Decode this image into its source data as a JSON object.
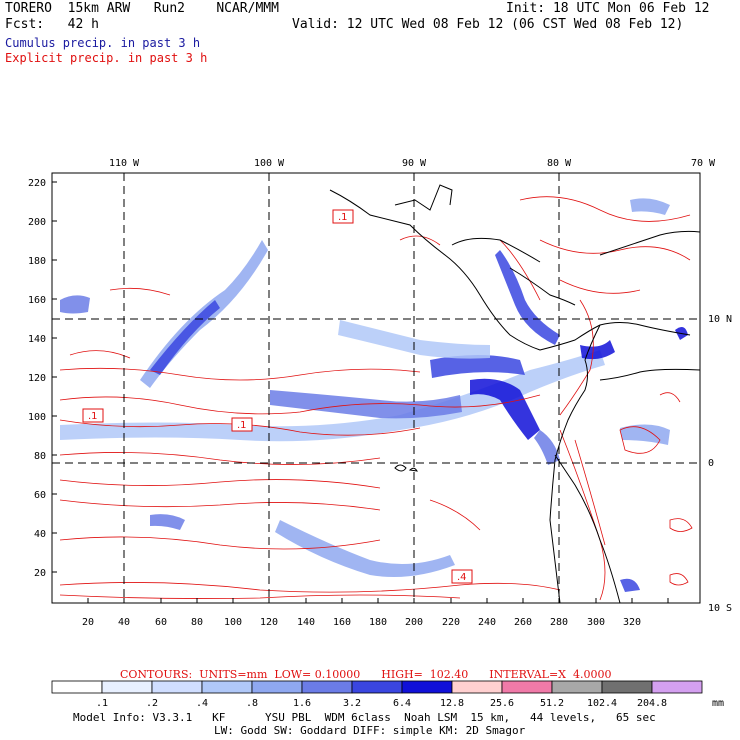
{
  "header": {
    "model": "TORERO  15km ARW   Run2    NCAR/MMM",
    "init": "Init: 18 UTC Mon 06 Feb 12",
    "fcst": "Fcst:   42 h",
    "valid": "Valid: 12 UTC Wed 08 Feb 12 (06 CST Wed 08 Feb 12)",
    "cumulus": "Cumulus precip. in past 3 h",
    "explicit": "Explicit precip. in past 3 h"
  },
  "axes": {
    "top_lon_labels": [
      "110 W",
      "100 W",
      "90 W",
      "80 W",
      "70 W"
    ],
    "right_lat_labels": [
      "10 N",
      "0",
      "10 S"
    ],
    "left_y_ticks": [
      "220",
      "200",
      "180",
      "160",
      "140",
      "120",
      "100",
      "80",
      "60",
      "40",
      "20"
    ],
    "bottom_x_ticks": [
      "20",
      "40",
      "60",
      "80",
      "100",
      "120",
      "140",
      "160",
      "180",
      "200",
      "220",
      "240",
      "260",
      "280",
      "300",
      "320"
    ]
  },
  "contour_labels": [
    ".1",
    ".1",
    ".1",
    ".4"
  ],
  "contours_line": {
    "prefix": "CONTOURS:",
    "units": "UNITS=mm",
    "low": "LOW= 0.10000",
    "high": "HIGH=  102.40",
    "interval": "INTERVAL=X  4.0000"
  },
  "colorbar": {
    "labels": [
      ".1",
      ".2",
      ".4",
      ".8",
      "1.6",
      "3.2",
      "6.4",
      "12.8",
      "25.6",
      "51.2",
      "102.4",
      "204.8"
    ],
    "unit": "mm",
    "colors": [
      "#ffffff",
      "#e8f0ff",
      "#d0deff",
      "#b0c8f8",
      "#8fa8f0",
      "#6b7ce6",
      "#3a46e0",
      "#1010d8",
      "#ffd0d0",
      "#f07aa8",
      "#a8a8a8",
      "#707070",
      "#d4a0f0"
    ]
  },
  "footer": {
    "line1": "Model Info: V3.3.1   KF      YSU PBL  WDM 6class  Noah LSM  15 km,   44 levels,   65 sec",
    "line2": "LW: Godd SW: Goddard DIFF: simple KM: 2D Smagor"
  }
}
